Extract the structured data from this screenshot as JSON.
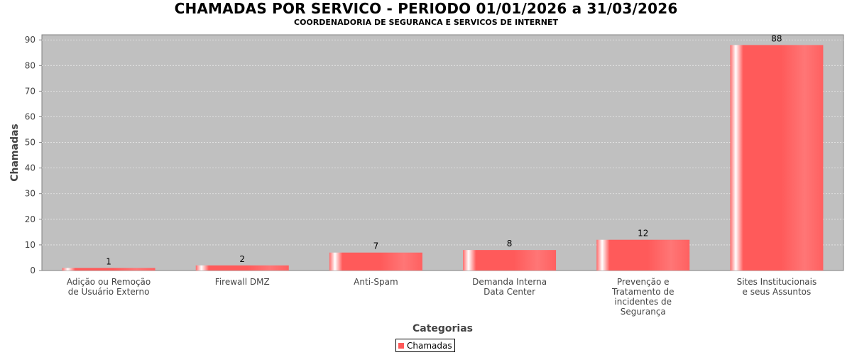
{
  "chart_data": {
    "type": "bar",
    "title": "CHAMADAS POR SERVICO - PERIODO 01/01/2026 a 31/03/2026",
    "subtitle": "COORDENADORIA DE SEGURANCA E SERVICOS DE INTERNET",
    "xlabel": "Categorias",
    "ylabel": "Chamadas",
    "ylim": [
      0,
      92
    ],
    "yticks": [
      0,
      10,
      20,
      30,
      40,
      50,
      60,
      70,
      80,
      90
    ],
    "grid": true,
    "legend_placement": "bottom",
    "categories": [
      [
        "Adição ou Remoção",
        "de Usuário Externo"
      ],
      [
        "Firewall DMZ"
      ],
      [
        "Anti-Spam"
      ],
      [
        "Demanda Interna",
        "Data Center"
      ],
      [
        "Prevenção e",
        "Tratamento de",
        "incidentes de",
        "Segurança"
      ],
      [
        "Sites Institucionais",
        "e seus Assuntos"
      ]
    ],
    "series": [
      {
        "name": "Chamadas",
        "values": [
          1,
          2,
          7,
          8,
          12,
          88
        ]
      }
    ],
    "colors": {
      "bar": "#ff5a5a",
      "bar_light": "#ffffff",
      "plot_background": "#c0c0c0",
      "gridline": "#e8e8e8"
    }
  }
}
